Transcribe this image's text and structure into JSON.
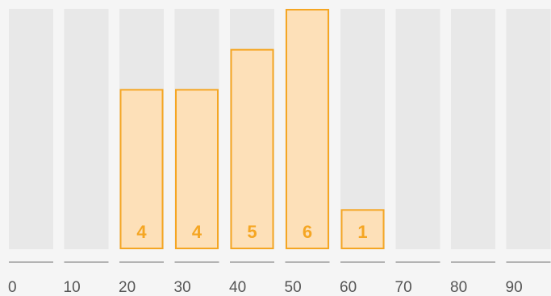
{
  "chart_data": {
    "type": "bar",
    "categories": [
      "0",
      "10",
      "20",
      "30",
      "40",
      "50",
      "60",
      "70",
      "80",
      "90"
    ],
    "values": [
      0,
      0,
      4,
      4,
      5,
      6,
      1,
      0,
      0,
      0
    ],
    "value_labels": [
      "",
      "",
      "4",
      "4",
      "5",
      "6",
      "1",
      "",
      "",
      ""
    ],
    "ylim": [
      0,
      6
    ],
    "grid": false,
    "colors": {
      "background": "#f5f5f5",
      "slot": "#e8e8e8",
      "bar_fill": "#fde0b8",
      "bar_stroke": "#f5a623",
      "value_label": "#f5a623",
      "axis_line": "#b3b3b3",
      "tick_label": "#555555"
    }
  }
}
